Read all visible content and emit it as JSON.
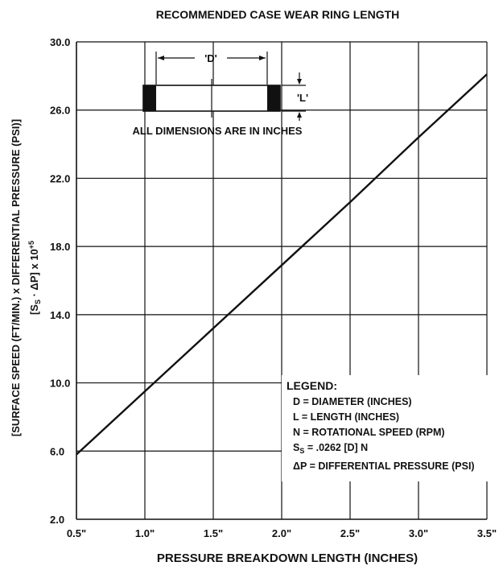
{
  "chart_data": {
    "type": "line",
    "title": "RECOMMENDED CASE WEAR RING LENGTH",
    "xlabel": "PRESSURE BREAKDOWN LENGTH (INCHES)",
    "ylabel_line1": "[SURFACE SPEED (FT/MIN.) x DIFFERENTIAL PRESSURE (PSI)]",
    "ylabel_line2": "[S",
    "ylabel_line2_sub": "S",
    "ylabel_line2_mid": " · ΔP] x 10",
    "ylabel_line2_sup": "+5",
    "xlim": [
      0.5,
      3.5
    ],
    "ylim": [
      2.0,
      30.0
    ],
    "x_ticks": [
      0.5,
      1.0,
      1.5,
      2.0,
      2.5,
      3.0,
      3.5
    ],
    "x_tick_labels": [
      "0.5\"",
      "1.0\"",
      "1.5\"",
      "2.0\"",
      "2.5\"",
      "3.0\"",
      "3.5\""
    ],
    "y_ticks": [
      2.0,
      6.0,
      10.0,
      14.0,
      18.0,
      22.0,
      26.0,
      30.0
    ],
    "y_tick_labels": [
      "2.0",
      "6.0",
      "10.0",
      "14.0",
      "18.0",
      "22.0",
      "26.0",
      "30.0"
    ],
    "grid": true,
    "series": [
      {
        "x": [
          0.5,
          1.0,
          1.5,
          2.0,
          2.5,
          3.0,
          3.5
        ],
        "y": [
          5.8,
          9.5,
          13.2,
          16.9,
          20.6,
          24.4,
          28.1
        ]
      }
    ]
  },
  "inset": {
    "d_label": "'D'",
    "l_label": "'L'",
    "note": "ALL DIMENSIONS ARE IN INCHES"
  },
  "legend": {
    "title": "LEGEND:",
    "line_d": "D = DIAMETER (INCHES)",
    "line_l": "L = LENGTH (INCHES)",
    "line_n": "N = ROTATIONAL SPEED (RPM)",
    "ss_s": "S",
    "ss_sub": "S",
    "ss_rest": " = .0262 [D] N",
    "line_dp": "ΔP = DIFFERENTIAL PRESSURE (PSI)"
  }
}
